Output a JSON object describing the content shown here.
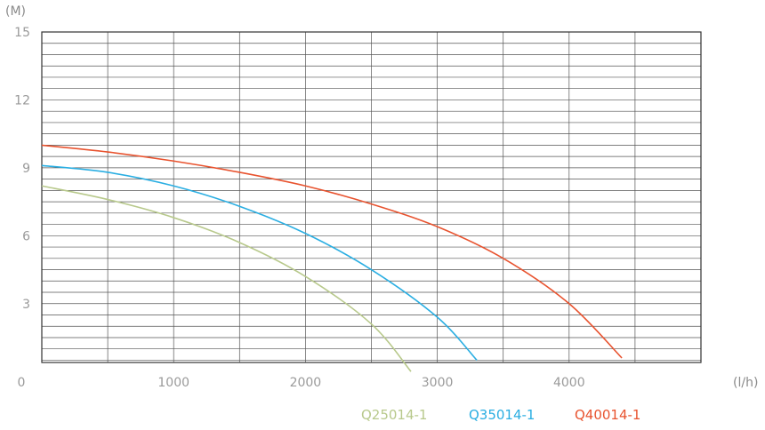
{
  "chart_data": {
    "type": "line",
    "ylabel": "(M)",
    "xlabel": "(l/h)",
    "xlim": [
      0,
      5000
    ],
    "ylim": [
      0,
      15
    ],
    "grid": true,
    "y_ticks": [
      "15",
      "12",
      "9",
      "6",
      "3"
    ],
    "x_tick_labels": [
      "0",
      "1000",
      "2000",
      "3000",
      "4000"
    ],
    "legend_position": "bottom-right",
    "series": [
      {
        "name": "Q25014-1",
        "color": "#b8c98c",
        "x": [
          0,
          500,
          1000,
          1500,
          2000,
          2500,
          2800
        ],
        "y": [
          8.2,
          7.6,
          6.8,
          5.7,
          4.2,
          2.1,
          0
        ]
      },
      {
        "name": "Q35014-1",
        "color": "#2aaee2",
        "x": [
          0,
          500,
          1000,
          1500,
          2000,
          2500,
          3000,
          3300
        ],
        "y": [
          9.1,
          8.8,
          8.2,
          7.3,
          6.1,
          4.5,
          2.4,
          0.5
        ]
      },
      {
        "name": "Q40014-1",
        "color": "#e8532f",
        "x": [
          0,
          500,
          1000,
          1500,
          2000,
          2500,
          3000,
          3500,
          4000,
          4400
        ],
        "y": [
          10,
          9.7,
          9.3,
          8.8,
          8.2,
          7.4,
          6.4,
          5.0,
          3.0,
          0.6
        ]
      }
    ]
  }
}
